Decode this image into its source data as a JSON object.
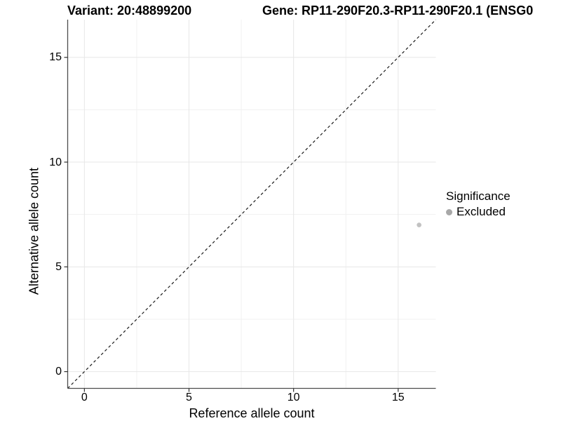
{
  "chart_data": {
    "type": "scatter",
    "titles": {
      "left": "Variant: 20:48899200",
      "right": "Gene: RP11-290F20.3-RP11-290F20.1 (ENSG0"
    },
    "xlabel": "Reference allele count",
    "ylabel": "Alternative allele count",
    "xlim": [
      -0.8,
      16.8
    ],
    "ylim": [
      -0.8,
      16.8
    ],
    "x_ticks": [
      0,
      5,
      10,
      15
    ],
    "y_ticks": [
      0,
      5,
      10,
      15
    ],
    "x_minor_ticks": [
      2.5,
      7.5,
      12.5
    ],
    "y_minor_ticks": [
      2.5,
      7.5,
      12.5
    ],
    "grid": true,
    "legend_position": "right",
    "legend": {
      "title": "Significance",
      "items": [
        {
          "label": "Excluded",
          "color": "#a8a8a8"
        }
      ]
    },
    "series": [
      {
        "name": "Excluded",
        "color": "#c2c2c2",
        "points": [
          {
            "x": 16,
            "y": 7
          }
        ]
      }
    ],
    "reference_line": {
      "style": "dashed",
      "slope": 1,
      "intercept": 0,
      "color": "#1a1a1a"
    }
  },
  "style": {
    "grid_major": "#e7e7e7",
    "grid_minor": "#f1f1f1",
    "axis_line": "#4d4d4d",
    "tick_mark": "#333333",
    "text": "#000000",
    "background": "#ffffff"
  }
}
